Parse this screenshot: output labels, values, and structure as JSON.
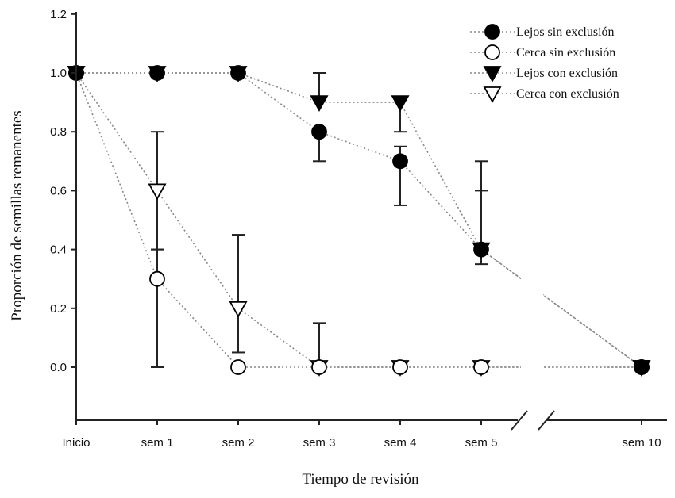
{
  "chart_data": {
    "type": "scatter",
    "title": "",
    "xlabel": "Tiempo de revisión",
    "ylabel": "Proporción de semillas remanentes",
    "categories": [
      "Inicio",
      "sem 1",
      "sem 2",
      "sem 3",
      "sem 4",
      "sem 5",
      "sem 10"
    ],
    "x": [
      0,
      1,
      2,
      3,
      4,
      5,
      7
    ],
    "ylim": [
      -0.18,
      1.2
    ],
    "yticks": [
      "0.0",
      "0.2",
      "0.4",
      "0.6",
      "0.8",
      "1.0",
      "1.2"
    ],
    "ytick_values": [
      0,
      0.2,
      0.4,
      0.6,
      0.8,
      1.0,
      1.2
    ],
    "axis_break": "between sem 5 and sem 10",
    "grid": false,
    "legend_position": "top-right",
    "series": [
      {
        "name": "Lejos sin exclusión",
        "marker": "circle-filled",
        "values": [
          1,
          1,
          1,
          0.8,
          0.7,
          0.4,
          0
        ],
        "err_low": [
          null,
          null,
          null,
          0.7,
          0.55,
          0.35,
          null
        ],
        "err_high": [
          null,
          null,
          null,
          null,
          0.75,
          0.7,
          null
        ]
      },
      {
        "name": "Cerca sin exclusión",
        "marker": "circle-open",
        "values": [
          1,
          0.3,
          0,
          0,
          0,
          0,
          0
        ],
        "err_low": [
          null,
          0,
          null,
          null,
          null,
          null,
          null
        ],
        "err_high": [
          null,
          0.4,
          null,
          null,
          null,
          null,
          null
        ]
      },
      {
        "name": "Lejos con exclusión",
        "marker": "triangle-filled",
        "values": [
          1,
          1,
          1,
          0.9,
          0.9,
          0.4,
          0
        ],
        "err_low": [
          null,
          null,
          null,
          null,
          0.8,
          null,
          null
        ],
        "err_high": [
          null,
          null,
          null,
          1.0,
          null,
          0.6,
          null
        ]
      },
      {
        "name": "Cerca con exclusión",
        "marker": "triangle-open",
        "values": [
          1,
          0.6,
          0.2,
          0,
          0,
          0,
          0
        ],
        "err_low": [
          null,
          0.4,
          0.05,
          null,
          null,
          null,
          null
        ],
        "err_high": [
          null,
          0.8,
          0.45,
          0.15,
          null,
          null,
          null
        ]
      }
    ]
  }
}
